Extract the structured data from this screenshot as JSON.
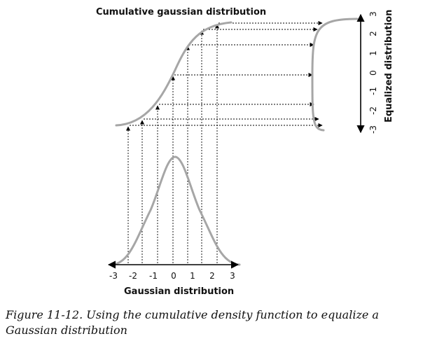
{
  "diagram": {
    "cdf_title": "Cumulative gaussian distribution",
    "gaussian_title": "Gaussian distribution",
    "equalized_title": "Equalized distribution",
    "x_ticks": [
      "-3",
      "-2",
      "-1",
      "0",
      "1",
      "2",
      "3"
    ],
    "y_ticks": [
      "-3",
      "-2",
      "-1",
      "0",
      "1",
      "2",
      "3"
    ],
    "curve_color": "#a6a6a6",
    "guide_color": "#000000"
  },
  "caption": "Figure 11-12. Using the cumulative density function to equalize a Gaussian distribution"
}
